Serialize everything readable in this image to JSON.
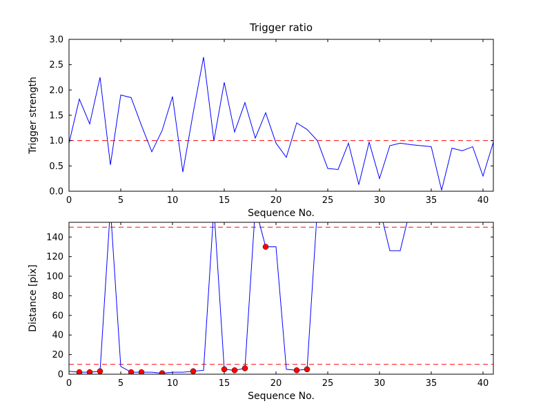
{
  "figure": {
    "background": "#ffffff",
    "frame_color": "#000000"
  },
  "chart_data": [
    {
      "type": "line",
      "title": "Trigger ratio",
      "xlabel": "Sequence No.",
      "ylabel": "Trigger strength",
      "xlim": [
        0,
        41
      ],
      "ylim": [
        0.0,
        3.0
      ],
      "grid": false,
      "legend": null,
      "xticks": [
        0,
        5,
        10,
        15,
        20,
        25,
        30,
        35,
        40
      ],
      "xtick_labels": [
        "0",
        "5",
        "10",
        "15",
        "20",
        "25",
        "30",
        "35",
        "40"
      ],
      "yticks": [
        0.0,
        0.5,
        1.0,
        1.5,
        2.0,
        2.5,
        3.0
      ],
      "ytick_labels": [
        "0.0",
        "0.5",
        "1.0",
        "1.5",
        "2.0",
        "2.5",
        "3.0"
      ],
      "reference_lines": [
        {
          "y": 1.0,
          "color": "#ff0000",
          "style": "dashed"
        }
      ],
      "series": [
        {
          "name": "trigger-strength",
          "color": "#0000ff",
          "x": [
            0,
            1,
            2,
            3,
            4,
            5,
            6,
            7,
            8,
            9,
            10,
            11,
            12,
            13,
            14,
            15,
            16,
            17,
            18,
            19,
            20,
            21,
            22,
            23,
            24,
            25,
            26,
            27,
            28,
            29,
            30,
            31,
            32,
            33,
            34,
            35,
            36,
            37,
            38,
            39,
            40,
            41
          ],
          "y": [
            0.95,
            1.82,
            1.33,
            2.25,
            0.52,
            1.9,
            1.85,
            1.3,
            0.78,
            1.2,
            1.87,
            0.38,
            1.55,
            2.65,
            1.0,
            2.15,
            1.17,
            1.75,
            1.05,
            1.55,
            0.95,
            0.67,
            1.35,
            1.22,
            1.0,
            0.45,
            0.43,
            0.95,
            0.13,
            0.97,
            0.25,
            0.9,
            0.95,
            0.92,
            0.9,
            0.88,
            0.02,
            0.85,
            0.8,
            0.88,
            0.3,
            0.97
          ]
        }
      ]
    },
    {
      "type": "line",
      "title": "",
      "xlabel": "Sequence No.",
      "ylabel": "Distance [pix]",
      "xlim": [
        0,
        41
      ],
      "ylim": [
        0,
        155
      ],
      "grid": false,
      "legend": null,
      "xticks": [
        0,
        5,
        10,
        15,
        20,
        25,
        30,
        35,
        40
      ],
      "xtick_labels": [
        "0",
        "5",
        "10",
        "15",
        "20",
        "25",
        "30",
        "35",
        "40"
      ],
      "yticks": [
        0,
        20,
        40,
        60,
        80,
        100,
        120,
        140
      ],
      "ytick_labels": [
        "0",
        "20",
        "40",
        "60",
        "80",
        "100",
        "120",
        "140"
      ],
      "reference_lines": [
        {
          "y": 150,
          "color": "#ff0000",
          "style": "dashed"
        },
        {
          "y": 10,
          "color": "#ff0000",
          "style": "dashed"
        }
      ],
      "series": [
        {
          "name": "distance",
          "color": "#0000ff",
          "x": [
            0,
            1,
            2,
            3,
            4,
            5,
            6,
            7,
            8,
            9,
            10,
            11,
            12,
            13,
            14,
            15,
            16,
            17,
            18,
            19,
            20,
            21,
            22,
            23,
            24,
            25,
            26,
            27,
            28,
            29,
            30,
            31,
            32,
            33,
            34,
            35,
            36,
            37,
            38,
            39,
            40,
            41
          ],
          "y": [
            3,
            2,
            2,
            3,
            170,
            8,
            2,
            2,
            2,
            1,
            2,
            2,
            3,
            4,
            170,
            5,
            4,
            6,
            170,
            130,
            130,
            5,
            4,
            5,
            170,
            170,
            170,
            170,
            170,
            170,
            170,
            126,
            126,
            170,
            170,
            170,
            170,
            170,
            170,
            170,
            170,
            170
          ]
        }
      ],
      "markers": {
        "name": "triggered-points",
        "color": "#ff0000",
        "edge_color": "#000000",
        "points": [
          [
            1,
            2
          ],
          [
            2,
            2
          ],
          [
            3,
            3
          ],
          [
            6,
            2
          ],
          [
            7,
            2
          ],
          [
            9,
            1
          ],
          [
            12,
            3
          ],
          [
            15,
            5
          ],
          [
            16,
            4
          ],
          [
            17,
            6
          ],
          [
            19,
            130
          ],
          [
            22,
            4
          ],
          [
            23,
            5
          ]
        ]
      }
    }
  ]
}
